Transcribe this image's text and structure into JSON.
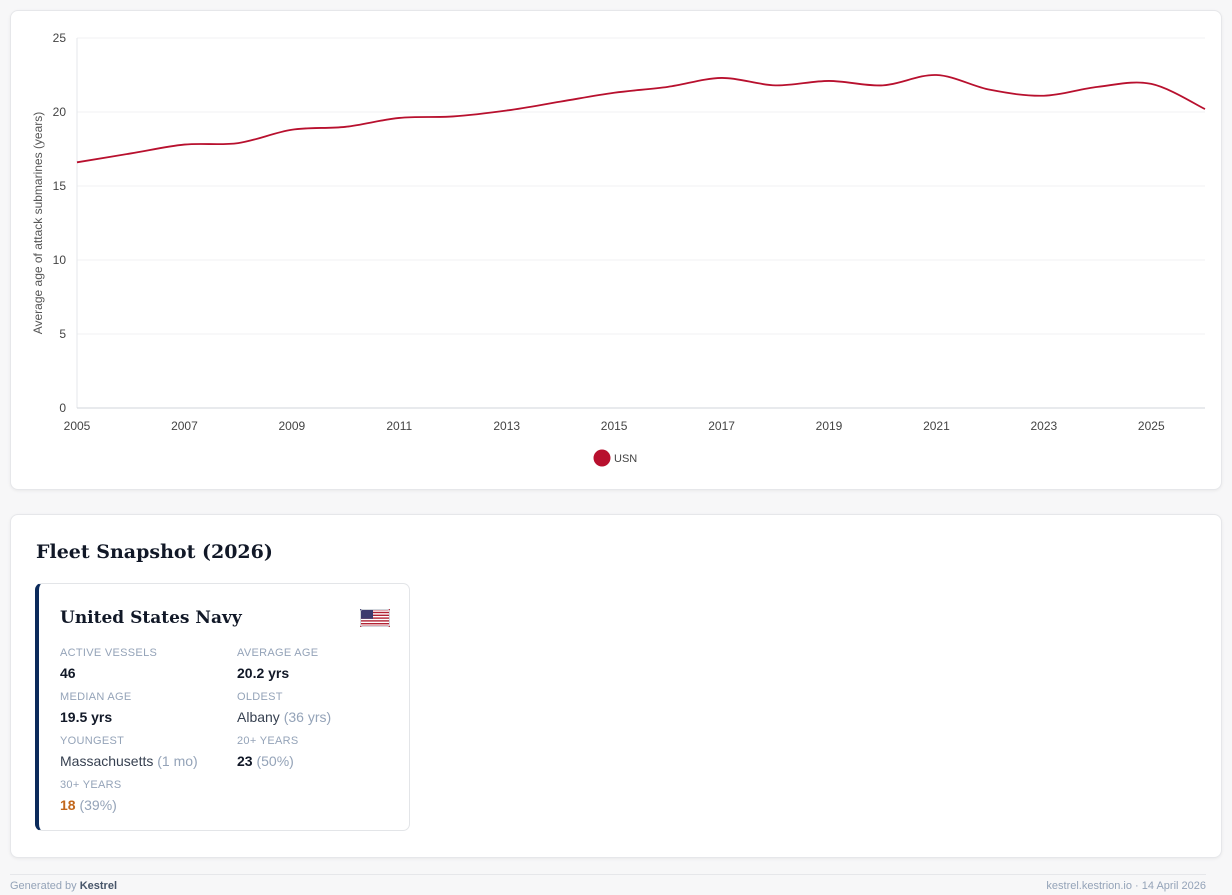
{
  "chart_data": {
    "type": "line",
    "ylabel": "Average age of attack submarines (years)",
    "xlim": [
      2005,
      2026
    ],
    "ylim": [
      0,
      25
    ],
    "yticks": [
      0,
      5,
      10,
      15,
      20,
      25
    ],
    "xticks": [
      2005,
      2007,
      2009,
      2011,
      2013,
      2015,
      2017,
      2019,
      2021,
      2023,
      2025
    ],
    "grid": true,
    "legend": "bottom-center",
    "series": [
      {
        "name": "USN",
        "color": "#b8102e",
        "x": [
          2005,
          2006,
          2007,
          2008,
          2009,
          2010,
          2011,
          2012,
          2013,
          2014,
          2015,
          2016,
          2017,
          2018,
          2019,
          2020,
          2021,
          2022,
          2023,
          2024,
          2025,
          2026
        ],
        "y": [
          16.6,
          17.2,
          17.8,
          17.9,
          18.8,
          19.0,
          19.6,
          19.7,
          20.1,
          20.7,
          21.3,
          21.7,
          22.3,
          21.8,
          22.1,
          21.8,
          22.5,
          21.5,
          21.1,
          21.7,
          21.9,
          20.2
        ]
      }
    ]
  },
  "snapshot": {
    "title": "Fleet Snapshot (2026)",
    "navy": {
      "name": "United States Navy",
      "flag_icon": "us-flag-icon",
      "accent_color": "#0b2a5b",
      "stats": {
        "active_vessels": {
          "label": "ACTIVE VESSELS",
          "value": "46"
        },
        "average_age": {
          "label": "AVERAGE AGE",
          "value": "20.2 yrs"
        },
        "median_age": {
          "label": "MEDIAN AGE",
          "value": "19.5 yrs"
        },
        "oldest": {
          "label": "OLDEST",
          "value": "Albany",
          "note": "(36 yrs)"
        },
        "youngest": {
          "label": "YOUNGEST",
          "value": "Massachusetts",
          "note": "(1 mo)"
        },
        "over_20": {
          "label": "20+ YEARS",
          "value": "23",
          "note": "(50%)"
        },
        "over_30": {
          "label": "30+ YEARS",
          "value": "18",
          "note": "(39%)",
          "color": "#c2671c"
        }
      }
    }
  },
  "footer": {
    "generated_prefix": "Generated by",
    "generator": "Kestrel",
    "right": "kestrel.kestrion.io · 14 April 2026"
  }
}
